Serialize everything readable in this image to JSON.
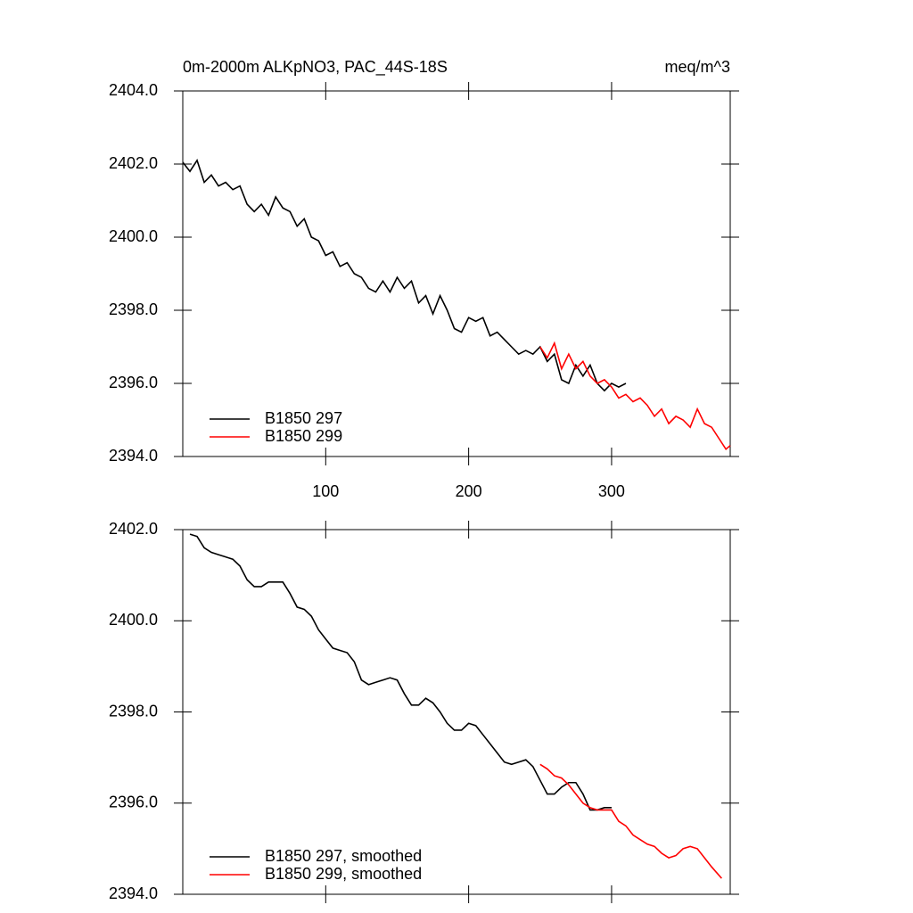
{
  "chart_data": [
    {
      "type": "line",
      "title": "0m-2000m ALKpNO3, PAC_44S-18S",
      "units": "meq/m^3",
      "xlim": [
        0,
        383
      ],
      "xticks": [
        100,
        200,
        300
      ],
      "show_xtick_labels": true,
      "ylim": [
        2394,
        2404
      ],
      "yticks": [
        {
          "value": 2394,
          "label": "2394.0"
        },
        {
          "value": 2396,
          "label": "2396.0"
        },
        {
          "value": 2398,
          "label": "2398.0"
        },
        {
          "value": 2400,
          "label": "2400.0"
        },
        {
          "value": 2402,
          "label": "2402.0"
        },
        {
          "value": 2404,
          "label": "2404.0"
        }
      ],
      "legend": "lower left",
      "series": [
        {
          "name": "B1850 297",
          "color": "#000000",
          "x": [
            0,
            5,
            10,
            15,
            20,
            25,
            30,
            35,
            40,
            45,
            50,
            55,
            60,
            65,
            70,
            75,
            80,
            85,
            90,
            95,
            100,
            105,
            110,
            115,
            120,
            125,
            130,
            135,
            140,
            145,
            150,
            155,
            160,
            165,
            170,
            175,
            180,
            185,
            190,
            195,
            200,
            205,
            210,
            215,
            220,
            225,
            230,
            235,
            240,
            245,
            250,
            255,
            260,
            265,
            270,
            275,
            280,
            285,
            290,
            295,
            300,
            305,
            310
          ],
          "values": [
            2402.05,
            2401.8,
            2402.1,
            2401.5,
            2401.7,
            2401.4,
            2401.5,
            2401.3,
            2401.4,
            2400.9,
            2400.7,
            2400.9,
            2400.6,
            2401.1,
            2400.8,
            2400.7,
            2400.3,
            2400.5,
            2400.0,
            2399.9,
            2399.5,
            2399.6,
            2399.2,
            2399.3,
            2399.0,
            2398.9,
            2398.6,
            2398.5,
            2398.8,
            2398.5,
            2398.9,
            2398.6,
            2398.8,
            2398.2,
            2398.4,
            2397.9,
            2398.4,
            2398.0,
            2397.5,
            2397.4,
            2397.8,
            2397.7,
            2397.8,
            2397.3,
            2397.4,
            2397.2,
            2397.0,
            2396.8,
            2396.9,
            2396.8,
            2397.0,
            2396.6,
            2396.8,
            2396.1,
            2396.0,
            2396.5,
            2396.2,
            2396.5,
            2396.0,
            2395.8,
            2396.0,
            2395.9,
            2396.0
          ]
        },
        {
          "name": "B1850 299",
          "color": "#ff0000",
          "x": [
            250,
            255,
            260,
            265,
            270,
            275,
            280,
            285,
            290,
            295,
            300,
            305,
            310,
            315,
            320,
            325,
            330,
            335,
            340,
            345,
            350,
            355,
            360,
            365,
            370,
            375,
            380,
            383
          ],
          "values": [
            2397.0,
            2396.7,
            2397.1,
            2396.4,
            2396.8,
            2396.4,
            2396.6,
            2396.2,
            2396.0,
            2396.1,
            2395.9,
            2395.6,
            2395.7,
            2395.5,
            2395.6,
            2395.4,
            2395.1,
            2395.3,
            2394.9,
            2395.1,
            2395.0,
            2394.8,
            2395.3,
            2394.9,
            2394.8,
            2394.5,
            2394.2,
            2394.3
          ]
        }
      ]
    },
    {
      "type": "line",
      "xlim": [
        0,
        383
      ],
      "xticks": [
        100,
        200,
        300
      ],
      "show_xtick_labels": false,
      "ylim": [
        2394,
        2402
      ],
      "yticks": [
        {
          "value": 2394,
          "label": "2394.0"
        },
        {
          "value": 2396,
          "label": "2396.0"
        },
        {
          "value": 2398,
          "label": "2398.0"
        },
        {
          "value": 2400,
          "label": "2400.0"
        },
        {
          "value": 2402,
          "label": "2402.0"
        }
      ],
      "legend": "lower left",
      "series": [
        {
          "name": "B1850 297, smoothed",
          "color": "#000000",
          "x": [
            5,
            10,
            15,
            20,
            25,
            30,
            35,
            40,
            45,
            50,
            55,
            60,
            65,
            70,
            75,
            80,
            85,
            90,
            95,
            100,
            105,
            110,
            115,
            120,
            125,
            130,
            135,
            140,
            145,
            150,
            155,
            160,
            165,
            170,
            175,
            180,
            185,
            190,
            195,
            200,
            205,
            210,
            215,
            220,
            225,
            230,
            235,
            240,
            245,
            250,
            255,
            260,
            265,
            270,
            275,
            280,
            285,
            290,
            295,
            300
          ],
          "values": [
            2401.9,
            2401.85,
            2401.6,
            2401.5,
            2401.45,
            2401.4,
            2401.35,
            2401.2,
            2400.9,
            2400.75,
            2400.75,
            2400.85,
            2400.85,
            2400.85,
            2400.6,
            2400.3,
            2400.25,
            2400.1,
            2399.8,
            2399.6,
            2399.4,
            2399.35,
            2399.3,
            2399.1,
            2398.7,
            2398.6,
            2398.65,
            2398.7,
            2398.75,
            2398.7,
            2398.4,
            2398.15,
            2398.15,
            2398.3,
            2398.2,
            2398.0,
            2397.75,
            2397.6,
            2397.6,
            2397.75,
            2397.7,
            2397.5,
            2397.3,
            2397.1,
            2396.9,
            2396.85,
            2396.9,
            2396.95,
            2396.8,
            2396.5,
            2396.2,
            2396.2,
            2396.35,
            2396.45,
            2396.45,
            2396.2,
            2395.85,
            2395.85,
            2395.9,
            2395.9
          ]
        },
        {
          "name": "B1850 299, smoothed",
          "color": "#ff0000",
          "x": [
            250,
            255,
            260,
            265,
            270,
            275,
            280,
            285,
            290,
            295,
            300,
            305,
            310,
            315,
            320,
            325,
            330,
            335,
            340,
            345,
            350,
            355,
            360,
            365,
            370,
            377
          ],
          "values": [
            2396.85,
            2396.75,
            2396.6,
            2396.55,
            2396.4,
            2396.2,
            2396.0,
            2395.9,
            2395.85,
            2395.85,
            2395.85,
            2395.6,
            2395.5,
            2395.3,
            2395.2,
            2395.1,
            2395.05,
            2394.9,
            2394.8,
            2394.85,
            2395.0,
            2395.05,
            2395.0,
            2394.8,
            2394.6,
            2394.35
          ]
        }
      ]
    }
  ]
}
